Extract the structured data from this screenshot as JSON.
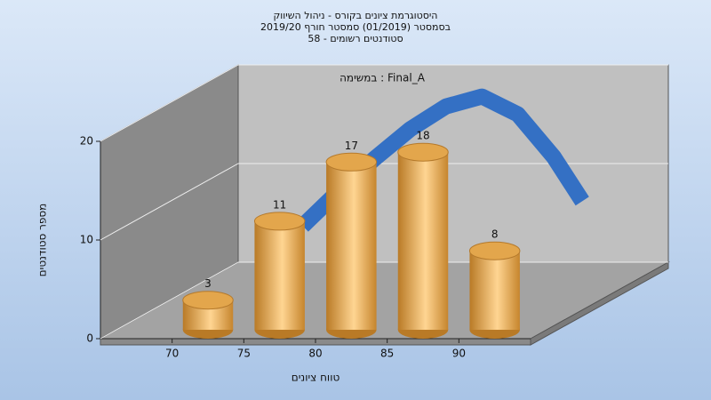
{
  "chart_data": {
    "type": "histogram",
    "title": "היסטוגרמת ציונים בקורס - ניהול השיווק",
    "subtitle": "בסמסטר  (01/2019)  סמסטר חורף 2019/20",
    "subtitle2": "סטודנטים רשומים - 58",
    "annotation": "במשימה : Final_A",
    "x_label": "טווח ציונים",
    "y_label": "מספר סטודנטים",
    "bins": [
      70,
      75,
      80,
      85,
      90,
      95
    ],
    "values": [
      3,
      11,
      17,
      18,
      8
    ],
    "color": "#e3a64c",
    "xlim": [
      65,
      95
    ],
    "xticks": [
      70,
      75,
      80,
      85,
      90
    ],
    "ylim": [
      0,
      20
    ],
    "yticks": [
      0,
      10,
      20
    ],
    "grid": true,
    "curve": {
      "color": "#3470c4",
      "x": [
        69.5,
        72,
        74.5,
        77,
        79.5,
        82,
        84.5,
        87,
        89
      ],
      "values": [
        4.5,
        8,
        11.3,
        14.3,
        16.6,
        17.6,
        15.8,
        11.5,
        7
      ]
    }
  }
}
